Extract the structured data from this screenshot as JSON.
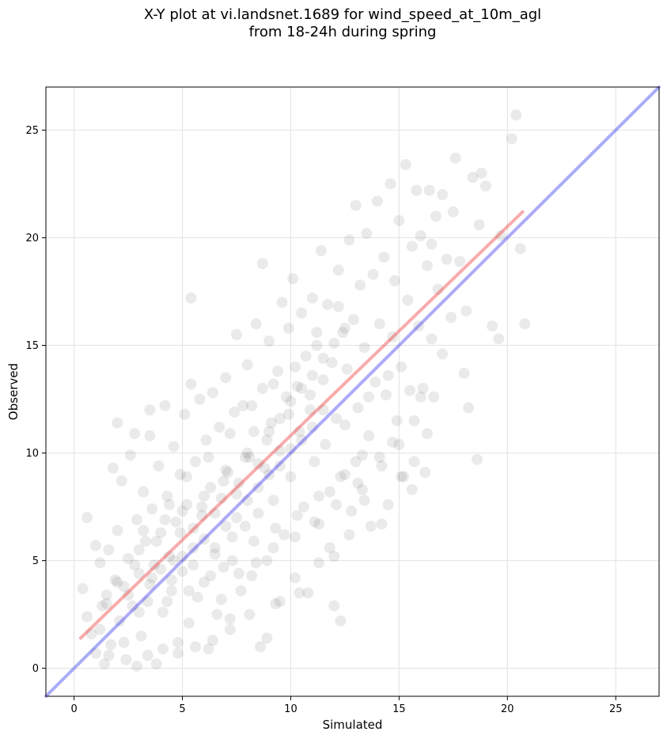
{
  "chart_data": {
    "type": "scatter",
    "title_line1": "X-Y plot at vi.landsnet.1689 for wind_speed_at_10m_agl",
    "title_line2": "from 18-24h during spring",
    "xlabel": "Simulated",
    "ylabel": "Observed",
    "xlim": [
      -1.3,
      27.0
    ],
    "ylim": [
      -1.3,
      27.0
    ],
    "xticks": [
      0,
      5,
      10,
      15,
      20,
      25
    ],
    "yticks": [
      0,
      5,
      10,
      15,
      20,
      25
    ],
    "grid": true,
    "point_color": "#555555",
    "point_opacity": 0.12,
    "lines": [
      {
        "role": "identity",
        "color": "#0000ee",
        "opacity": 0.33,
        "x": [
          -1.3,
          27.0
        ],
        "y": [
          -1.3,
          27.0
        ]
      },
      {
        "role": "fit",
        "color": "#ee0000",
        "opacity": 0.33,
        "x": [
          0.3,
          20.7
        ],
        "y": [
          1.4,
          21.2
        ]
      }
    ],
    "points": [
      [
        0.4,
        3.7
      ],
      [
        0.6,
        2.4
      ],
      [
        0.6,
        7.0
      ],
      [
        0.8,
        1.6
      ],
      [
        1.0,
        5.7
      ],
      [
        1.0,
        0.7
      ],
      [
        1.2,
        4.9
      ],
      [
        1.3,
        2.9
      ],
      [
        1.4,
        0.2
      ],
      [
        1.5,
        3.4
      ],
      [
        1.6,
        5.5
      ],
      [
        1.7,
        1.1
      ],
      [
        1.8,
        9.3
      ],
      [
        1.9,
        4.1
      ],
      [
        2.0,
        11.4
      ],
      [
        2.0,
        6.4
      ],
      [
        2.1,
        2.2
      ],
      [
        2.2,
        8.7
      ],
      [
        2.3,
        3.8
      ],
      [
        2.4,
        0.4
      ],
      [
        2.5,
        5.1
      ],
      [
        2.6,
        9.9
      ],
      [
        2.7,
        2.9
      ],
      [
        2.8,
        10.9
      ],
      [
        2.9,
        6.9
      ],
      [
        3.0,
        4.4
      ],
      [
        3.1,
        1.5
      ],
      [
        3.2,
        8.2
      ],
      [
        3.3,
        5.9
      ],
      [
        3.4,
        3.1
      ],
      [
        3.5,
        10.8
      ],
      [
        3.5,
        12.0
      ],
      [
        3.6,
        7.4
      ],
      [
        3.7,
        4.8
      ],
      [
        3.8,
        0.2
      ],
      [
        3.9,
        9.4
      ],
      [
        4.0,
        6.3
      ],
      [
        4.1,
        2.6
      ],
      [
        4.2,
        12.2
      ],
      [
        4.3,
        8.0
      ],
      [
        4.4,
        5.2
      ],
      [
        4.5,
        3.6
      ],
      [
        4.6,
        10.3
      ],
      [
        4.7,
        6.8
      ],
      [
        4.8,
        1.2
      ],
      [
        4.9,
        9.0
      ],
      [
        5.0,
        4.5
      ],
      [
        5.1,
        11.8
      ],
      [
        5.2,
        7.6
      ],
      [
        5.3,
        2.1
      ],
      [
        5.4,
        13.2
      ],
      [
        5.4,
        17.2
      ],
      [
        5.5,
        5.6
      ],
      [
        5.6,
        9.6
      ],
      [
        5.7,
        3.3
      ],
      [
        5.8,
        12.5
      ],
      [
        5.9,
        7.1
      ],
      [
        6.0,
        4.0
      ],
      [
        6.1,
        10.6
      ],
      [
        6.2,
        0.9
      ],
      [
        6.3,
        8.4
      ],
      [
        6.4,
        12.8
      ],
      [
        6.5,
        5.3
      ],
      [
        6.6,
        2.5
      ],
      [
        6.7,
        11.2
      ],
      [
        6.8,
        7.9
      ],
      [
        6.9,
        4.7
      ],
      [
        7.0,
        13.5
      ],
      [
        7.1,
        9.1
      ],
      [
        7.2,
        1.8
      ],
      [
        7.3,
        6.1
      ],
      [
        7.4,
        11.9
      ],
      [
        7.5,
        15.5
      ],
      [
        7.6,
        8.6
      ],
      [
        7.7,
        3.6
      ],
      [
        7.8,
        12.2
      ],
      [
        7.9,
        6.6
      ],
      [
        8.0,
        14.1
      ],
      [
        8.1,
        9.8
      ],
      [
        8.2,
        4.3
      ],
      [
        8.3,
        11.0
      ],
      [
        8.4,
        16.0
      ],
      [
        8.5,
        7.2
      ],
      [
        8.6,
        1.0
      ],
      [
        8.7,
        13.0
      ],
      [
        8.7,
        18.8
      ],
      [
        8.8,
        9.3
      ],
      [
        8.9,
        5.0
      ],
      [
        9.0,
        15.2
      ],
      [
        9.1,
        11.4
      ],
      [
        9.2,
        7.8
      ],
      [
        9.3,
        3.0
      ],
      [
        9.4,
        13.8
      ],
      [
        9.5,
        10.1
      ],
      [
        9.6,
        17.0
      ],
      [
        9.7,
        6.2
      ],
      [
        9.8,
        12.6
      ],
      [
        9.9,
        15.8
      ],
      [
        10.0,
        8.9
      ],
      [
        10.1,
        18.1
      ],
      [
        10.2,
        4.2
      ],
      [
        10.3,
        13.1
      ],
      [
        10.4,
        11.0
      ],
      [
        10.5,
        16.5
      ],
      [
        10.6,
        7.5
      ],
      [
        10.7,
        14.5
      ],
      [
        10.8,
        3.5
      ],
      [
        10.9,
        12.0
      ],
      [
        11.0,
        17.2
      ],
      [
        11.1,
        9.6
      ],
      [
        11.2,
        15.0
      ],
      [
        11.3,
        6.7
      ],
      [
        11.4,
        19.4
      ],
      [
        11.5,
        13.4
      ],
      [
        11.6,
        10.4
      ],
      [
        11.7,
        16.9
      ],
      [
        11.8,
        5.6
      ],
      [
        11.9,
        14.2
      ],
      [
        12.0,
        2.9
      ],
      [
        12.1,
        11.6
      ],
      [
        12.2,
        18.5
      ],
      [
        12.3,
        2.2
      ],
      [
        12.4,
        15.6
      ],
      [
        12.5,
        9.0
      ],
      [
        12.6,
        13.9
      ],
      [
        12.7,
        19.9
      ],
      [
        12.8,
        7.3
      ],
      [
        12.9,
        16.2
      ],
      [
        13.0,
        21.5
      ],
      [
        13.1,
        12.1
      ],
      [
        13.2,
        17.8
      ],
      [
        13.3,
        8.3
      ],
      [
        13.4,
        14.9
      ],
      [
        13.5,
        20.2
      ],
      [
        13.6,
        10.8
      ],
      [
        13.7,
        6.6
      ],
      [
        13.8,
        18.3
      ],
      [
        13.9,
        13.3
      ],
      [
        14.0,
        21.7
      ],
      [
        14.1,
        16.0
      ],
      [
        14.2,
        9.4
      ],
      [
        14.3,
        19.1
      ],
      [
        14.4,
        12.7
      ],
      [
        14.5,
        7.6
      ],
      [
        14.6,
        22.5
      ],
      [
        14.7,
        15.4
      ],
      [
        14.8,
        18.0
      ],
      [
        14.9,
        11.5
      ],
      [
        15.0,
        20.8
      ],
      [
        15.1,
        14.0
      ],
      [
        15.2,
        8.9
      ],
      [
        15.3,
        23.4
      ],
      [
        15.4,
        17.1
      ],
      [
        15.5,
        12.9
      ],
      [
        15.6,
        19.6
      ],
      [
        15.7,
        9.6
      ],
      [
        15.8,
        22.2
      ],
      [
        15.9,
        15.9
      ],
      [
        16.0,
        20.1
      ],
      [
        16.1,
        13.0
      ],
      [
        16.2,
        9.1
      ],
      [
        16.3,
        18.7
      ],
      [
        16.4,
        22.2
      ],
      [
        16.5,
        15.3
      ],
      [
        16.6,
        12.6
      ],
      [
        16.7,
        21.0
      ],
      [
        16.8,
        17.6
      ],
      [
        17.0,
        14.6
      ],
      [
        17.2,
        19.0
      ],
      [
        17.4,
        16.3
      ],
      [
        17.6,
        23.7
      ],
      [
        17.8,
        18.9
      ],
      [
        18.0,
        13.7
      ],
      [
        18.1,
        16.6
      ],
      [
        18.2,
        12.1
      ],
      [
        18.4,
        22.8
      ],
      [
        18.6,
        9.7
      ],
      [
        18.7,
        20.6
      ],
      [
        18.8,
        23.0
      ],
      [
        19.0,
        22.4
      ],
      [
        19.3,
        15.9
      ],
      [
        19.6,
        15.3
      ],
      [
        19.7,
        20.1
      ],
      [
        20.2,
        24.6
      ],
      [
        20.4,
        25.7
      ],
      [
        20.6,
        19.5
      ],
      [
        20.8,
        16.0
      ],
      [
        16.5,
        19.7
      ],
      [
        17.0,
        22.0
      ],
      [
        17.5,
        21.2
      ],
      [
        1.2,
        1.8
      ],
      [
        1.6,
        0.6
      ],
      [
        2.3,
        1.2
      ],
      [
        2.9,
        0.1
      ],
      [
        3.4,
        0.6
      ],
      [
        4.1,
        0.9
      ],
      [
        4.8,
        0.7
      ],
      [
        5.6,
        1.0
      ],
      [
        6.4,
        1.3
      ],
      [
        7.2,
        2.3
      ],
      [
        8.1,
        2.5
      ],
      [
        8.9,
        1.4
      ],
      [
        9.5,
        3.1
      ],
      [
        10.4,
        3.5
      ],
      [
        11.3,
        4.9
      ],
      [
        12.0,
        5.2
      ],
      [
        12.7,
        6.2
      ],
      [
        13.4,
        7.8
      ],
      [
        14.2,
        6.7
      ],
      [
        15.1,
        8.9
      ],
      [
        15.6,
        8.3
      ],
      [
        14.7,
        10.5
      ],
      [
        13.0,
        9.6
      ],
      [
        11.8,
        8.2
      ],
      [
        12.5,
        11.3
      ],
      [
        13.6,
        12.6
      ],
      [
        14.5,
        13.6
      ],
      [
        15.7,
        11.5
      ],
      [
        16.3,
        10.9
      ],
      [
        16.0,
        12.6
      ],
      [
        3.0,
        5.5
      ],
      [
        3.6,
        4.2
      ],
      [
        4.2,
        6.9
      ],
      [
        4.6,
        5.0
      ],
      [
        5.0,
        7.3
      ],
      [
        5.5,
        6.5
      ],
      [
        6.0,
        8.0
      ],
      [
        6.5,
        7.2
      ],
      [
        7.0,
        9.2
      ],
      [
        7.5,
        8.1
      ],
      [
        8.0,
        10.0
      ],
      [
        8.5,
        9.5
      ],
      [
        9.0,
        11.0
      ],
      [
        9.5,
        11.6
      ],
      [
        10.0,
        12.4
      ],
      [
        10.5,
        13.0
      ],
      [
        11.0,
        13.6
      ],
      [
        11.5,
        14.4
      ],
      [
        12.0,
        15.1
      ],
      [
        12.5,
        15.8
      ],
      [
        2.0,
        4.0
      ],
      [
        2.5,
        3.4
      ],
      [
        3.0,
        2.6
      ],
      [
        3.5,
        3.9
      ],
      [
        4.0,
        4.6
      ],
      [
        4.5,
        4.1
      ],
      [
        5.0,
        5.2
      ],
      [
        5.5,
        4.8
      ],
      [
        6.0,
        6.0
      ],
      [
        6.5,
        5.6
      ],
      [
        7.0,
        6.6
      ],
      [
        7.5,
        7.0
      ],
      [
        8.0,
        7.8
      ],
      [
        8.5,
        8.4
      ],
      [
        9.0,
        9.0
      ],
      [
        9.5,
        9.4
      ],
      [
        10.0,
        10.2
      ],
      [
        10.5,
        10.6
      ],
      [
        11.0,
        11.2
      ],
      [
        11.5,
        12.0
      ],
      [
        3.2,
        6.4
      ],
      [
        4.4,
        7.6
      ],
      [
        5.2,
        8.9
      ],
      [
        6.2,
        9.8
      ],
      [
        7.2,
        10.9
      ],
      [
        8.2,
        12.2
      ],
      [
        9.2,
        13.2
      ],
      [
        10.2,
        14.0
      ],
      [
        11.2,
        15.6
      ],
      [
        12.2,
        16.8
      ],
      [
        4.3,
        3.1
      ],
      [
        5.3,
        3.6
      ],
      [
        6.3,
        4.3
      ],
      [
        7.3,
        5.0
      ],
      [
        8.3,
        5.9
      ],
      [
        9.3,
        6.5
      ],
      [
        10.3,
        7.1
      ],
      [
        11.3,
        8.0
      ],
      [
        12.3,
        8.9
      ],
      [
        13.3,
        9.9
      ],
      [
        1.5,
        3.0
      ],
      [
        2.8,
        4.8
      ],
      [
        3.8,
        5.9
      ],
      [
        4.9,
        6.3
      ],
      [
        5.9,
        7.5
      ],
      [
        6.9,
        8.7
      ],
      [
        7.9,
        9.8
      ],
      [
        8.9,
        10.6
      ],
      [
        9.9,
        11.8
      ],
      [
        10.9,
        12.7
      ],
      [
        6.8,
        3.2
      ],
      [
        7.6,
        4.4
      ],
      [
        8.4,
        4.9
      ],
      [
        9.2,
        5.6
      ],
      [
        10.2,
        6.1
      ],
      [
        11.1,
        6.8
      ],
      [
        12.1,
        7.6
      ],
      [
        13.1,
        8.6
      ],
      [
        14.1,
        9.8
      ],
      [
        15.0,
        10.4
      ]
    ]
  }
}
